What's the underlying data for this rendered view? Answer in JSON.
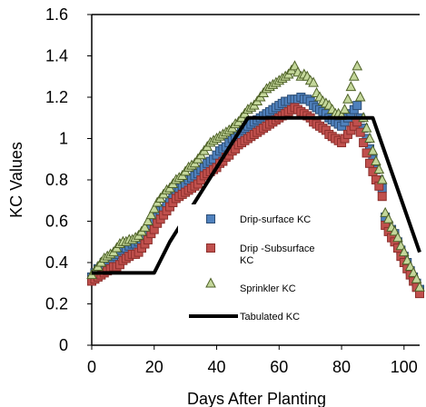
{
  "chart_data": {
    "type": "scatter",
    "xlabel": "Days After Planting",
    "ylabel": "KC Values",
    "xlim": [
      0,
      105
    ],
    "ylim": [
      0,
      1.6
    ],
    "x_ticks": [
      0,
      20,
      40,
      60,
      80,
      100
    ],
    "y_ticks": [
      0,
      0.2,
      0.4,
      0.6,
      0.8,
      1,
      1.2,
      1.4,
      1.6
    ],
    "x_tick_labels": [
      "0",
      "20",
      "40",
      "60",
      "80",
      "100"
    ],
    "y_tick_labels": [
      "0",
      "0.2",
      "0.4",
      "0.6",
      "0.8",
      "1",
      "1.2",
      "1.4",
      "1.6"
    ],
    "grid": false,
    "legend_position": "lower-center",
    "series": [
      {
        "name": "Drip-surface KC",
        "marker": "square",
        "color": "#4f81bd",
        "edge_color": "#2c4d75",
        "x": [
          0,
          1,
          2,
          3,
          4,
          5,
          6,
          7,
          8,
          9,
          10,
          11,
          12,
          13,
          14,
          15,
          16,
          17,
          18,
          19,
          20,
          21,
          22,
          23,
          24,
          25,
          26,
          27,
          28,
          29,
          30,
          31,
          32,
          33,
          34,
          35,
          36,
          37,
          38,
          39,
          40,
          41,
          42,
          43,
          44,
          45,
          46,
          47,
          48,
          49,
          50,
          51,
          52,
          53,
          54,
          55,
          56,
          57,
          58,
          59,
          60,
          61,
          62,
          63,
          64,
          65,
          66,
          67,
          68,
          69,
          70,
          71,
          72,
          73,
          74,
          75,
          76,
          77,
          78,
          79,
          80,
          81,
          82,
          83,
          84,
          85,
          86,
          87,
          88,
          89,
          90,
          91,
          92,
          93,
          94,
          95,
          96,
          97,
          98,
          99,
          100,
          101,
          102,
          103,
          104,
          105
        ],
        "y": [
          0.33,
          0.35,
          0.37,
          0.38,
          0.4,
          0.41,
          0.42,
          0.43,
          0.44,
          0.46,
          0.47,
          0.47,
          0.48,
          0.49,
          0.49,
          0.5,
          0.51,
          0.53,
          0.55,
          0.58,
          0.6,
          0.62,
          0.65,
          0.66,
          0.68,
          0.7,
          0.73,
          0.75,
          0.76,
          0.77,
          0.78,
          0.8,
          0.81,
          0.82,
          0.83,
          0.85,
          0.86,
          0.88,
          0.89,
          0.9,
          0.92,
          0.94,
          0.95,
          0.96,
          0.98,
          1.0,
          1.01,
          1.02,
          1.04,
          1.05,
          1.06,
          1.07,
          1.08,
          1.09,
          1.1,
          1.11,
          1.12,
          1.13,
          1.14,
          1.15,
          1.16,
          1.17,
          1.18,
          1.18,
          1.19,
          1.19,
          1.19,
          1.2,
          1.19,
          1.19,
          1.18,
          1.16,
          1.15,
          1.14,
          1.13,
          1.12,
          1.1,
          1.09,
          1.08,
          1.07,
          1.06,
          1.08,
          1.1,
          1.12,
          1.14,
          1.16,
          1.1,
          1.05,
          1.0,
          0.95,
          0.9,
          0.85,
          0.8,
          0.76,
          0.62,
          0.58,
          0.56,
          0.54,
          0.5,
          0.46,
          0.43,
          0.4,
          0.36,
          0.33,
          0.3,
          0.27
        ]
      },
      {
        "name": "Drip -Subsurface KC",
        "marker": "square",
        "color": "#c0504d",
        "edge_color": "#8c2f2c",
        "x": [
          0,
          1,
          2,
          3,
          4,
          5,
          6,
          7,
          8,
          9,
          10,
          11,
          12,
          13,
          14,
          15,
          16,
          17,
          18,
          19,
          20,
          21,
          22,
          23,
          24,
          25,
          26,
          27,
          28,
          29,
          30,
          31,
          32,
          33,
          34,
          35,
          36,
          37,
          38,
          39,
          40,
          41,
          42,
          43,
          44,
          45,
          46,
          47,
          48,
          49,
          50,
          51,
          52,
          53,
          54,
          55,
          56,
          57,
          58,
          59,
          60,
          61,
          62,
          63,
          64,
          65,
          66,
          67,
          68,
          69,
          70,
          71,
          72,
          73,
          74,
          75,
          76,
          77,
          78,
          79,
          80,
          81,
          82,
          83,
          84,
          85,
          86,
          87,
          88,
          89,
          90,
          91,
          92,
          93,
          94,
          95,
          96,
          97,
          98,
          99,
          100,
          101,
          102,
          103,
          104,
          105
        ],
        "y": [
          0.31,
          0.32,
          0.33,
          0.34,
          0.35,
          0.36,
          0.37,
          0.38,
          0.38,
          0.39,
          0.41,
          0.42,
          0.43,
          0.44,
          0.44,
          0.45,
          0.47,
          0.49,
          0.51,
          0.54,
          0.56,
          0.59,
          0.61,
          0.63,
          0.65,
          0.67,
          0.69,
          0.71,
          0.72,
          0.73,
          0.74,
          0.75,
          0.76,
          0.77,
          0.78,
          0.8,
          0.82,
          0.83,
          0.84,
          0.85,
          0.86,
          0.88,
          0.89,
          0.91,
          0.92,
          0.94,
          0.95,
          0.97,
          0.98,
          0.99,
          1.0,
          1.01,
          1.02,
          1.03,
          1.04,
          1.05,
          1.06,
          1.07,
          1.08,
          1.09,
          1.1,
          1.11,
          1.12,
          1.13,
          1.14,
          1.15,
          1.14,
          1.13,
          1.12,
          1.11,
          1.1,
          1.08,
          1.07,
          1.06,
          1.05,
          1.04,
          1.02,
          1.01,
          1.0,
          0.99,
          0.98,
          1.0,
          1.02,
          1.04,
          1.06,
          1.08,
          1.03,
          0.98,
          0.93,
          0.88,
          0.84,
          0.8,
          0.77,
          0.72,
          0.58,
          0.55,
          0.52,
          0.5,
          0.47,
          0.43,
          0.4,
          0.37,
          0.34,
          0.31,
          0.28,
          0.25
        ]
      },
      {
        "name": "Sprinkler KC",
        "marker": "triangle",
        "color": "#c4d79b",
        "edge_color": "#4f6228",
        "x": [
          0,
          1,
          2,
          3,
          4,
          5,
          6,
          7,
          8,
          9,
          10,
          11,
          12,
          13,
          14,
          15,
          16,
          17,
          18,
          19,
          20,
          21,
          22,
          23,
          24,
          25,
          26,
          27,
          28,
          29,
          30,
          31,
          32,
          33,
          34,
          35,
          36,
          37,
          38,
          39,
          40,
          41,
          42,
          43,
          44,
          45,
          46,
          47,
          48,
          49,
          50,
          51,
          52,
          53,
          54,
          55,
          56,
          57,
          58,
          59,
          60,
          61,
          62,
          63,
          64,
          65,
          66,
          67,
          68,
          69,
          70,
          71,
          72,
          73,
          74,
          75,
          76,
          77,
          78,
          79,
          80,
          81,
          82,
          83,
          84,
          85,
          86,
          87,
          88,
          89,
          90,
          91,
          92,
          93,
          94,
          95,
          96,
          97,
          98,
          99,
          100,
          101,
          102,
          103,
          104,
          105
        ],
        "y": [
          0.34,
          0.36,
          0.38,
          0.4,
          0.42,
          0.43,
          0.44,
          0.45,
          0.47,
          0.49,
          0.5,
          0.5,
          0.51,
          0.51,
          0.52,
          0.53,
          0.55,
          0.57,
          0.6,
          0.63,
          0.66,
          0.69,
          0.71,
          0.73,
          0.75,
          0.76,
          0.78,
          0.8,
          0.81,
          0.82,
          0.84,
          0.86,
          0.87,
          0.88,
          0.9,
          0.92,
          0.94,
          0.96,
          0.98,
          0.99,
          1.0,
          1.01,
          1.02,
          1.03,
          1.04,
          1.05,
          1.07,
          1.08,
          1.1,
          1.12,
          1.14,
          1.15,
          1.16,
          1.18,
          1.2,
          1.22,
          1.24,
          1.25,
          1.26,
          1.27,
          1.28,
          1.29,
          1.3,
          1.31,
          1.33,
          1.35,
          1.32,
          1.3,
          1.31,
          1.3,
          1.28,
          1.27,
          1.22,
          1.2,
          1.18,
          1.17,
          1.16,
          1.14,
          1.12,
          1.12,
          1.11,
          1.14,
          1.19,
          1.25,
          1.3,
          1.35,
          1.2,
          1.1,
          1.05,
          1.0,
          0.94,
          0.89,
          0.85,
          0.8,
          0.64,
          0.61,
          0.57,
          0.55,
          0.52,
          0.48,
          0.45,
          0.41,
          0.38,
          0.35,
          0.32,
          0.28
        ]
      },
      {
        "name": "Tabulated KC",
        "marker": "line",
        "color": "#000000",
        "x": [
          0,
          5,
          10,
          20,
          25,
          50,
          90,
          105
        ],
        "y": [
          0.35,
          0.35,
          0.35,
          0.35,
          0.5,
          1.1,
          1.1,
          0.45
        ]
      }
    ]
  }
}
